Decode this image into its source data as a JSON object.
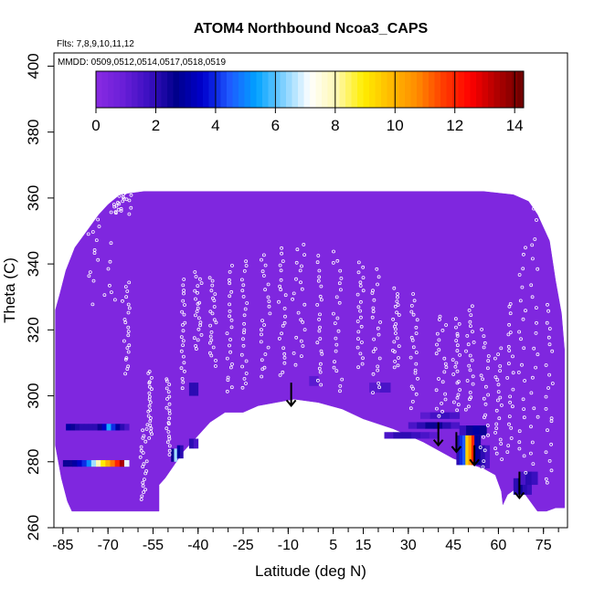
{
  "chart_data": {
    "type": "heatmap",
    "title": "ATOM4 Northbound Ncoa3_CAPS",
    "subtitle_flights": "Flts: 7,8,9,10,11,12",
    "subtitle_dates": "MMDD: 0509,0512,0514,0517,0518,0519",
    "xlabel": "Latitude (deg N)",
    "ylabel": "Theta (C)",
    "xlim": [
      -88,
      83
    ],
    "ylim": [
      260,
      404
    ],
    "x_ticks": [
      -85,
      -70,
      -55,
      -40,
      -25,
      -10,
      5,
      15,
      30,
      45,
      60,
      75
    ],
    "y_ticks": [
      260,
      280,
      300,
      320,
      340,
      360,
      380,
      400
    ],
    "colorbar": {
      "min": 0,
      "max": 14.3,
      "ticks": [
        0,
        2,
        4,
        6,
        8,
        10,
        12,
        14
      ],
      "colors": [
        "#8a2be2",
        "#6a1fd8",
        "#3a0fc0",
        "#00008b",
        "#0000cd",
        "#1e5aff",
        "#00a2ff",
        "#7ed0ff",
        "#ffffff",
        "#fff8b0",
        "#ffee00",
        "#ffbb00",
        "#ff8c00",
        "#ff3c00",
        "#ff0000",
        "#b00000",
        "#6b0000"
      ]
    },
    "background_value": 0.3,
    "envelope": [
      [
        -87.5,
        320
      ],
      [
        -87.5,
        326
      ],
      [
        -86,
        331
      ],
      [
        -84,
        338
      ],
      [
        -81,
        345
      ],
      [
        -77,
        350
      ],
      [
        -73,
        355
      ],
      [
        -70,
        358
      ],
      [
        -66,
        361
      ],
      [
        -58,
        362
      ],
      [
        -46,
        362
      ],
      [
        -20,
        362
      ],
      [
        0,
        362
      ],
      [
        20,
        362
      ],
      [
        40,
        362
      ],
      [
        55,
        362
      ],
      [
        65,
        361
      ],
      [
        70,
        359
      ],
      [
        73,
        355
      ],
      [
        77,
        347
      ],
      [
        79,
        335
      ],
      [
        81,
        325
      ],
      [
        82,
        314
      ],
      [
        82,
        300
      ],
      [
        82,
        266
      ],
      [
        79,
        266
      ],
      [
        76,
        265
      ],
      [
        73,
        265
      ],
      [
        69,
        270
      ],
      [
        66,
        272
      ],
      [
        63,
        270
      ],
      [
        61.5,
        267
      ],
      [
        61,
        271
      ],
      [
        59,
        276
      ],
      [
        55,
        278
      ],
      [
        45,
        281
      ],
      [
        35,
        286
      ],
      [
        25,
        290
      ],
      [
        15,
        293
      ],
      [
        8,
        296
      ],
      [
        0,
        298
      ],
      [
        -8,
        299
      ],
      [
        -14,
        298
      ],
      [
        -20,
        297
      ],
      [
        -25,
        295
      ],
      [
        -31,
        295
      ],
      [
        -36,
        292
      ],
      [
        -41,
        287
      ],
      [
        -45,
        283
      ],
      [
        -48,
        279
      ],
      [
        -51,
        275
      ],
      [
        -53,
        273
      ],
      [
        -53,
        265
      ],
      [
        -64,
        265
      ],
      [
        -82,
        265
      ],
      [
        -83.5,
        268
      ],
      [
        -85.5,
        275
      ],
      [
        -87.5,
        285
      ],
      [
        -87.5,
        320
      ]
    ],
    "anomalies": [
      {
        "x0": -84,
        "x1": -63,
        "y0": 289.5,
        "y1": 291.5,
        "v": [
          3,
          2.5,
          2.2,
          2,
          2,
          2,
          2,
          2.5,
          3.5,
          5.5,
          4,
          3,
          2,
          1.5
        ]
      },
      {
        "x0": -85,
        "x1": -63,
        "y0": 278.5,
        "y1": 280.5,
        "v": [
          2.5,
          2.5,
          3,
          3.5,
          4,
          5,
          6.5,
          8,
          9,
          10,
          11,
          12,
          13.5,
          7
        ]
      },
      {
        "x0": -49,
        "x1": -47,
        "y0": 280,
        "y1": 284,
        "v": [
          2.5,
          6.5
        ]
      },
      {
        "x0": -47,
        "x1": -45,
        "y0": 281,
        "y1": 285,
        "v": [
          3,
          2
        ]
      },
      {
        "x0": -43,
        "x1": -40,
        "y0": 284,
        "y1": 287,
        "v": [
          2,
          1.5
        ]
      },
      {
        "x0": -43,
        "x1": -40,
        "y0": 300,
        "y1": 304,
        "v": [
          2,
          2
        ]
      },
      {
        "x0": 17,
        "x1": 24,
        "y0": 301,
        "y1": 304,
        "v": [
          1.2,
          1.5
        ]
      },
      {
        "x0": -3,
        "x1": 0,
        "y0": 303,
        "y1": 306,
        "v": [
          1.2
        ]
      },
      {
        "x0": 22,
        "x1": 40,
        "y0": 287,
        "y1": 289,
        "v": [
          1.5,
          2,
          2,
          1.8,
          1.5,
          1.2
        ]
      },
      {
        "x0": 30,
        "x1": 47,
        "y0": 290,
        "y1": 292,
        "v": [
          1.5,
          2,
          2.5,
          2.5,
          2,
          1.5
        ]
      },
      {
        "x0": 34,
        "x1": 47,
        "y0": 293,
        "y1": 295,
        "v": [
          1.2,
          1.6,
          1.8,
          1.5
        ]
      },
      {
        "x0": 47,
        "x1": 56,
        "y0": 288,
        "y1": 291,
        "v": [
          1.8,
          2.5,
          3,
          2.5
        ]
      },
      {
        "x0": 46,
        "x1": 54,
        "y0": 279,
        "y1": 288,
        "v": [
          2,
          4,
          4.5,
          9.5,
          10.5,
          12,
          3,
          2.5
        ]
      },
      {
        "x0": 54,
        "x1": 57,
        "y0": 278,
        "y1": 285,
        "v": [
          2,
          1.5
        ]
      },
      {
        "x0": 65,
        "x1": 71,
        "y0": 270,
        "y1": 275,
        "v": [
          2,
          2.5,
          2,
          1.8
        ]
      },
      {
        "x0": 67,
        "x1": 73,
        "y0": 273,
        "y1": 277,
        "v": [
          1.5,
          2,
          1.8
        ]
      }
    ],
    "arrows": [
      {
        "x": -9,
        "y_top": 304,
        "y_tip": 297
      },
      {
        "x": 40,
        "y_top": 292,
        "y_tip": 285
      },
      {
        "x": 46,
        "y_top": 289,
        "y_tip": 283
      },
      {
        "x": 52,
        "y_top": 285,
        "y_tip": 279
      },
      {
        "x": 67,
        "y_top": 277,
        "y_tip": 269
      }
    ],
    "flight_tracks": [
      {
        "x0": -82,
        "x1": -64,
        "y0": 327,
        "y1": 358
      },
      {
        "x0": -70,
        "x1": -60,
        "y0": 355,
        "y1": 362
      },
      {
        "x0": -66,
        "x1": -62,
        "y0": 306,
        "y1": 335
      },
      {
        "x0": -60,
        "x1": -56,
        "y0": 268,
        "y1": 292
      },
      {
        "x0": -57,
        "x1": -55,
        "y0": 287,
        "y1": 308
      },
      {
        "x0": -51,
        "x1": -49,
        "y0": 282,
        "y1": 306
      },
      {
        "x0": -46,
        "x1": -44,
        "y0": 302,
        "y1": 336
      },
      {
        "x0": -42,
        "x1": -38,
        "y0": 314,
        "y1": 338
      },
      {
        "x0": -37,
        "x1": -33,
        "y0": 309,
        "y1": 337
      },
      {
        "x0": -31,
        "x1": -28,
        "y0": 300,
        "y1": 340
      },
      {
        "x0": -26,
        "x1": -23,
        "y0": 301,
        "y1": 342
      },
      {
        "x0": -20,
        "x1": -15,
        "y0": 305,
        "y1": 344
      },
      {
        "x0": -14,
        "x1": -10,
        "y0": 305,
        "y1": 346
      },
      {
        "x0": -10,
        "x1": -3,
        "y0": 309,
        "y1": 347
      },
      {
        "x0": -1,
        "x1": 2,
        "y0": 302,
        "y1": 343
      },
      {
        "x0": 4,
        "x1": 9,
        "y0": 300,
        "y1": 345
      },
      {
        "x0": 12,
        "x1": 16,
        "y0": 308,
        "y1": 342
      },
      {
        "x0": 17,
        "x1": 22,
        "y0": 300,
        "y1": 339
      },
      {
        "x0": 24,
        "x1": 28,
        "y0": 308,
        "y1": 333
      },
      {
        "x0": 30,
        "x1": 34,
        "y0": 296,
        "y1": 332
      },
      {
        "x0": 38,
        "x1": 44,
        "y0": 293,
        "y1": 325
      },
      {
        "x0": 44,
        "x1": 48,
        "y0": 295,
        "y1": 324
      },
      {
        "x0": 48,
        "x1": 53,
        "y0": 295,
        "y1": 328
      },
      {
        "x0": 53,
        "x1": 58,
        "y0": 278,
        "y1": 322
      },
      {
        "x0": 58,
        "x1": 62,
        "y0": 280,
        "y1": 315
      },
      {
        "x0": 62,
        "x1": 66,
        "y0": 282,
        "y1": 330
      },
      {
        "x0": 66,
        "x1": 70,
        "y0": 276,
        "y1": 348
      },
      {
        "x0": 70,
        "x1": 74,
        "y0": 277,
        "y1": 358
      },
      {
        "x0": 75,
        "x1": 79,
        "y0": 272,
        "y1": 330
      }
    ],
    "grid": false,
    "legend_position": "top"
  }
}
